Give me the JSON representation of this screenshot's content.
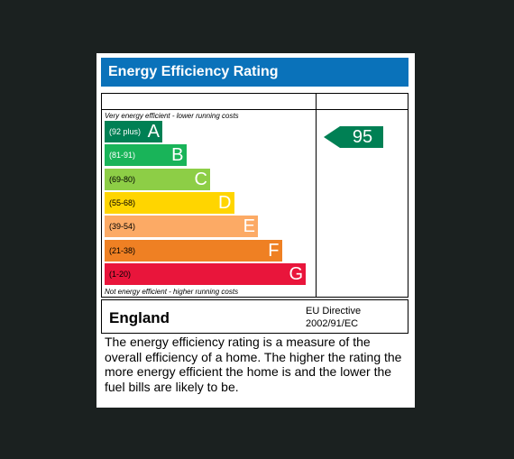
{
  "title": "Energy Efficiency Rating",
  "chart_data": {
    "type": "bar",
    "caption_top": "Very energy efficient - lower running costs",
    "caption_bottom": "Not energy efficient - higher running costs",
    "bands": [
      {
        "letter": "A",
        "range": "(92 plus)",
        "color": "#008054"
      },
      {
        "letter": "B",
        "range": "(81-91)",
        "color": "#19b459"
      },
      {
        "letter": "C",
        "range": "(69-80)",
        "color": "#8dce46"
      },
      {
        "letter": "D",
        "range": "(55-68)",
        "color": "#ffd500"
      },
      {
        "letter": "E",
        "range": "(39-54)",
        "color": "#fcaa65"
      },
      {
        "letter": "F",
        "range": "(21-38)",
        "color": "#ef8023"
      },
      {
        "letter": "G",
        "range": "(1-20)",
        "color": "#e9153b"
      }
    ],
    "rating": 95,
    "rating_band": "A",
    "rating_color": "#008054"
  },
  "footer": {
    "country": "England",
    "directive_line1": "EU Directive",
    "directive_line2": "2002/91/EC"
  },
  "description": "The energy efficiency rating is a measure of the overall efficiency of a home. The higher the rating the more energy efficient the home is and the lower the fuel bills are likely to be."
}
